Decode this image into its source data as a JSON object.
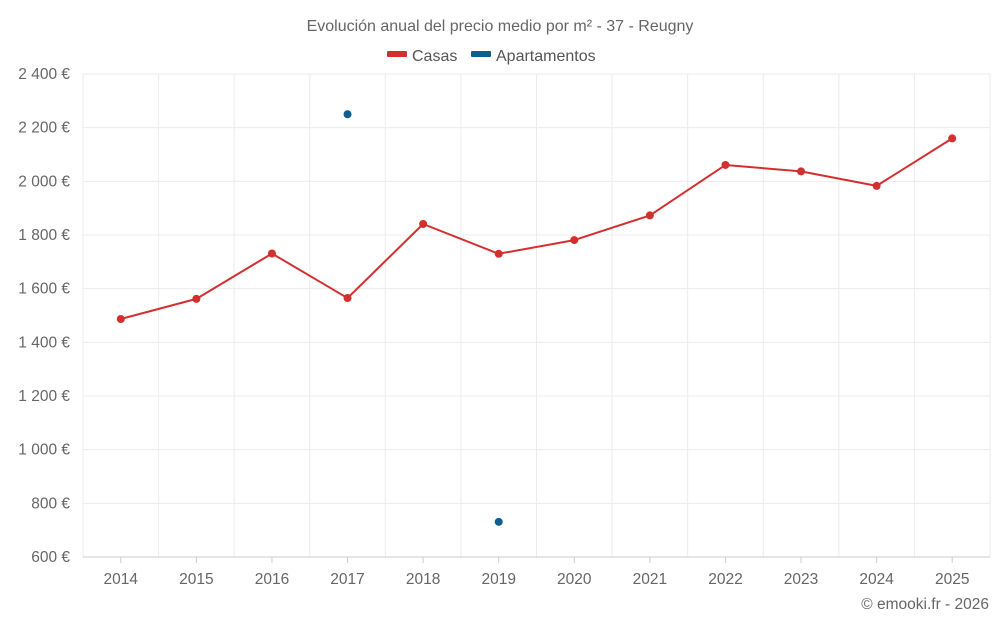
{
  "chart_data": {
    "type": "line",
    "title": "Evolución anual del precio medio por m² - 37 - Reugny",
    "credit": "© emooki.fr - 2026",
    "categories": [
      "2014",
      "2015",
      "2016",
      "2017",
      "2018",
      "2019",
      "2020",
      "2021",
      "2022",
      "2023",
      "2024",
      "2025"
    ],
    "ylim": [
      600,
      2400
    ],
    "yticks": [
      600,
      800,
      1000,
      1200,
      1400,
      1600,
      1800,
      2000,
      2200,
      2400
    ],
    "ytick_labels": [
      "600 €",
      "800 €",
      "1 000 €",
      "1 200 €",
      "1 400 €",
      "1 600 €",
      "1 800 €",
      "2 000 €",
      "2 200 €",
      "2 400 €"
    ],
    "grid": true,
    "legend_position": "top-center",
    "series": [
      {
        "name": "Casas",
        "color": "#d32f2f",
        "style": "line",
        "values": [
          1487,
          1562,
          1731,
          1565,
          1841,
          1730,
          1781,
          1873,
          2061,
          2037,
          1983,
          2160
        ]
      },
      {
        "name": "Apartamentos",
        "color": "#0d5f8f",
        "style": "points",
        "values": [
          null,
          null,
          null,
          2250,
          null,
          731,
          null,
          null,
          null,
          null,
          null,
          null
        ]
      }
    ]
  }
}
